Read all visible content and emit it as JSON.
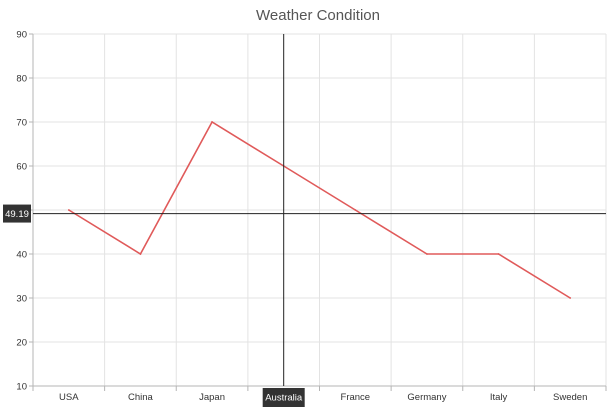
{
  "chart_data": {
    "type": "line",
    "title": "Weather Condition",
    "categories": [
      "USA",
      "China",
      "Japan",
      "Australia",
      "France",
      "Germany",
      "Italy",
      "Sweden"
    ],
    "series": [
      {
        "values": [
          50,
          40,
          70,
          60,
          50,
          40,
          40,
          30
        ],
        "color": "#e05a5a"
      }
    ],
    "ylim": [
      10,
      90
    ],
    "yticks": [
      10,
      20,
      30,
      40,
      50,
      60,
      70,
      80,
      90
    ],
    "grid": true,
    "crosshair": {
      "category": "Australia",
      "y_value": 49.19,
      "y_label": "49.19"
    }
  }
}
